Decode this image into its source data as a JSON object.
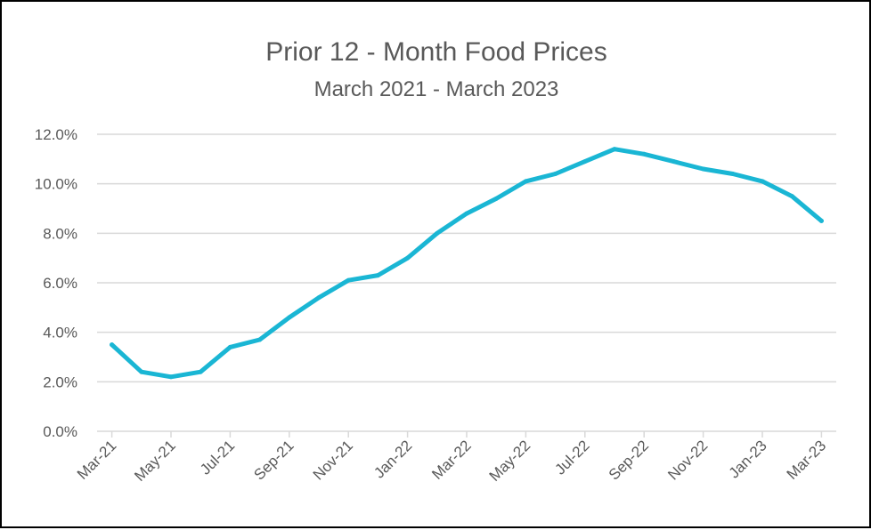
{
  "chart_data": {
    "type": "line",
    "title": "Prior 12 - Month Food Prices",
    "subtitle": "March 2021 - March 2023",
    "xlabel": "",
    "ylabel": "",
    "ylim": [
      0,
      12
    ],
    "y_ticks": [
      0,
      2,
      4,
      6,
      8,
      10,
      12
    ],
    "y_tick_labels": [
      "0.0%",
      "2.0%",
      "4.0%",
      "6.0%",
      "8.0%",
      "10.0%",
      "12.0%"
    ],
    "x": [
      "Mar-21",
      "Apr-21",
      "May-21",
      "Jun-21",
      "Jul-21",
      "Aug-21",
      "Sep-21",
      "Oct-21",
      "Nov-21",
      "Dec-21",
      "Jan-22",
      "Feb-22",
      "Mar-22",
      "Apr-22",
      "May-22",
      "Jun-22",
      "Jul-22",
      "Aug-22",
      "Sep-22",
      "Oct-22",
      "Nov-22",
      "Dec-22",
      "Jan-23",
      "Feb-23",
      "Mar-23"
    ],
    "x_tick_labels": [
      "Mar-21",
      "May-21",
      "Jul-21",
      "Sep-21",
      "Nov-21",
      "Jan-22",
      "Mar-22",
      "May-22",
      "Jul-22",
      "Sep-22",
      "Nov-22",
      "Jan-23",
      "Mar-23"
    ],
    "series": [
      {
        "values": [
          3.5,
          2.4,
          2.2,
          2.4,
          3.4,
          3.7,
          4.6,
          5.4,
          6.1,
          6.3,
          7.0,
          8.0,
          8.8,
          9.4,
          10.1,
          10.4,
          10.9,
          11.4,
          11.2,
          10.9,
          10.6,
          10.4,
          10.1,
          9.5,
          8.5
        ],
        "color": "#1ab6d4"
      }
    ],
    "grid": true,
    "gridline_color": "#d9d9d9",
    "legend": "none"
  }
}
